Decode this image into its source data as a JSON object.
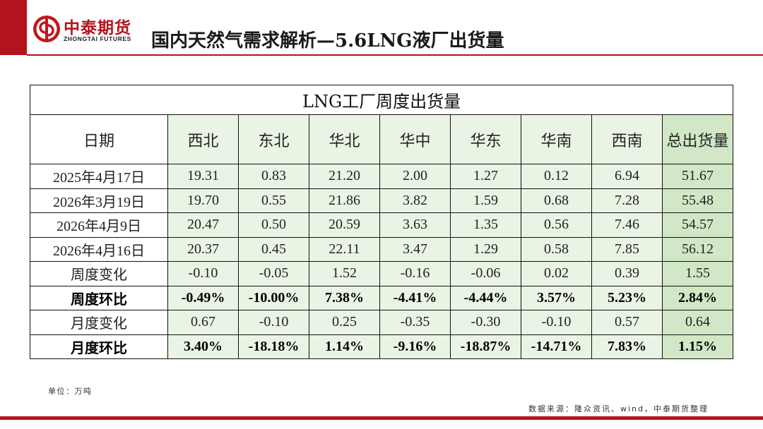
{
  "brand": {
    "name_cn": "中泰期货",
    "name_en": "ZHONGTAI FUTURES",
    "logo_icon": "zhongtai-logo-icon"
  },
  "slide": {
    "title": "国内天然气需求解析—5.6LNG液厂出货量"
  },
  "table": {
    "title": "LNG工厂周度出货量",
    "headers": [
      "日期",
      "西北",
      "东北",
      "华北",
      "华中",
      "华东",
      "华南",
      "西南",
      "总出货量"
    ],
    "rows": [
      {
        "label": "2025年4月17日",
        "values": [
          "19.31",
          "0.83",
          "21.20",
          "2.00",
          "1.27",
          "0.12",
          "6.94",
          "51.67"
        ]
      },
      {
        "label": "2026年3月19日",
        "values": [
          "19.70",
          "0.55",
          "21.86",
          "3.82",
          "1.59",
          "0.68",
          "7.28",
          "55.48"
        ]
      },
      {
        "label": "2026年4月9日",
        "values": [
          "20.47",
          "0.50",
          "20.59",
          "3.63",
          "1.35",
          "0.56",
          "7.46",
          "54.57"
        ]
      },
      {
        "label": "2026年4月16日",
        "values": [
          "20.37",
          "0.45",
          "22.11",
          "3.47",
          "1.29",
          "0.58",
          "7.85",
          "56.12"
        ]
      },
      {
        "label": "周度变化",
        "values": [
          "-0.10",
          "-0.05",
          "1.52",
          "-0.16",
          "-0.06",
          "0.02",
          "0.39",
          "1.55"
        ]
      },
      {
        "label": "周度环比",
        "values": [
          "-0.49%",
          "-10.00%",
          "7.38%",
          "-4.41%",
          "-4.44%",
          "3.57%",
          "5.23%",
          "2.84%"
        ]
      },
      {
        "label": "月度变化",
        "values": [
          "0.67",
          "-0.10",
          "0.25",
          "-0.35",
          "-0.30",
          "-0.10",
          "0.57",
          "0.64"
        ]
      },
      {
        "label": "月度环比",
        "values": [
          "3.40%",
          "-18.18%",
          "1.14%",
          "-9.16%",
          "-18.87%",
          "-14.71%",
          "7.83%",
          "1.15%"
        ]
      }
    ]
  },
  "footer": {
    "unit": "单位：万吨",
    "source": "数据来源：隆众资讯、wind，中泰期货整理"
  },
  "colors": {
    "brand_red": "#b3141c",
    "region_fill": "#eaf4e4",
    "total_fill": "#d2e7c5",
    "text": "#222222"
  }
}
